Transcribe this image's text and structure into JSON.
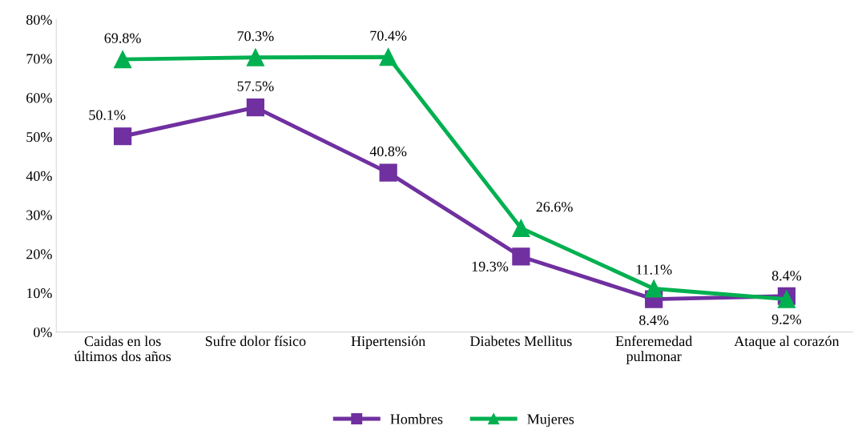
{
  "chart_data": {
    "type": "line",
    "categories": [
      "Caidas en los\núltimos dos años",
      "Sufre dolor físico",
      "Hipertensión",
      "Diabetes Mellitus",
      "Enferemedad\npulmonar",
      "Ataque al corazón"
    ],
    "series": [
      {
        "name": "Hombres",
        "color": "#7030a0",
        "marker": "square",
        "values": [
          50.1,
          57.5,
          40.8,
          19.3,
          8.4,
          9.2
        ],
        "value_labels": [
          "50.1%",
          "57.5%",
          "40.8%",
          "19.3%",
          "8.4%",
          "9.2%"
        ]
      },
      {
        "name": "Mujeres",
        "color": "#00b050",
        "marker": "triangle",
        "values": [
          69.8,
          70.3,
          70.4,
          26.6,
          11.1,
          8.4
        ],
        "value_labels": [
          "69.8%",
          "70.3%",
          "70.4%",
          "26.6%",
          "11.1%",
          "8.4%"
        ]
      }
    ],
    "ylim": [
      0,
      80
    ],
    "yticks": [
      {
        "value": 0,
        "label": "0%"
      },
      {
        "value": 10,
        "label": "10%"
      },
      {
        "value": 20,
        "label": "20%"
      },
      {
        "value": 30,
        "label": "30%"
      },
      {
        "value": 40,
        "label": "40%"
      },
      {
        "value": 50,
        "label": "50%"
      },
      {
        "value": 60,
        "label": "60%"
      },
      {
        "value": 70,
        "label": "70%"
      },
      {
        "value": 80,
        "label": "80%"
      }
    ],
    "grid": false,
    "legend": "bottom",
    "line_style": "solid"
  }
}
